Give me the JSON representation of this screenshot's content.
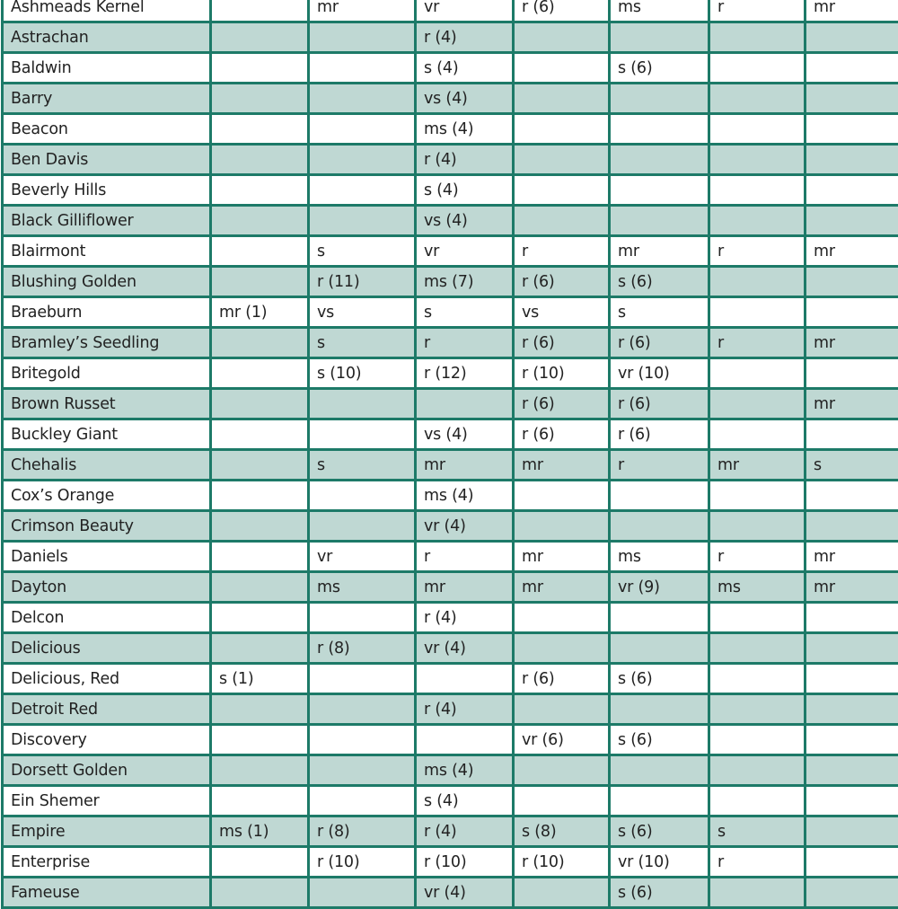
{
  "colors": {
    "border": "#1d7a68",
    "shade": "#bfd8d3"
  },
  "rows": [
    [
      "Ashmeads Kernel",
      "",
      "mr",
      "vr",
      "r (6)",
      "ms",
      "r",
      "mr"
    ],
    [
      "Astrachan",
      "",
      "",
      "r (4)",
      "",
      "",
      "",
      ""
    ],
    [
      "Baldwin",
      "",
      "",
      "s (4)",
      "",
      "s (6)",
      "",
      ""
    ],
    [
      "Barry",
      "",
      "",
      "vs (4)",
      "",
      "",
      "",
      ""
    ],
    [
      "Beacon",
      "",
      "",
      "ms (4)",
      "",
      "",
      "",
      ""
    ],
    [
      "Ben Davis",
      "",
      "",
      "r (4)",
      "",
      "",
      "",
      ""
    ],
    [
      "Beverly Hills",
      "",
      "",
      "s (4)",
      "",
      "",
      "",
      ""
    ],
    [
      "Black Gilliflower",
      "",
      "",
      "vs (4)",
      "",
      "",
      "",
      ""
    ],
    [
      "Blairmont",
      "",
      "s",
      "vr",
      "r",
      "mr",
      "r",
      "mr"
    ],
    [
      "Blushing Golden",
      "",
      "r (11)",
      "ms (7)",
      "r (6)",
      "s (6)",
      "",
      ""
    ],
    [
      "Braeburn",
      "mr (1)",
      "vs",
      "s",
      "vs",
      "s",
      "",
      ""
    ],
    [
      "Bramley’s Seedling",
      "",
      "s",
      "r",
      "r (6)",
      "r (6)",
      "r",
      "mr"
    ],
    [
      "Britegold",
      "",
      "s (10)",
      "r (12)",
      "r (10)",
      "vr (10)",
      "",
      ""
    ],
    [
      "Brown Russet",
      "",
      "",
      "",
      "r (6)",
      "r (6)",
      "",
      "mr"
    ],
    [
      "Buckley Giant",
      "",
      "",
      "vs (4)",
      "r (6)",
      "r (6)",
      "",
      ""
    ],
    [
      "Chehalis",
      "",
      "s",
      "mr",
      "mr",
      "r",
      "mr",
      "s"
    ],
    [
      "Cox’s Orange",
      "",
      "",
      "ms (4)",
      "",
      "",
      "",
      ""
    ],
    [
      "Crimson Beauty",
      "",
      "",
      "vr (4)",
      "",
      "",
      "",
      ""
    ],
    [
      "Daniels",
      "",
      "vr",
      "r",
      "mr",
      "ms",
      "r",
      "mr"
    ],
    [
      "Dayton",
      "",
      "ms",
      "mr",
      "mr",
      "vr (9)",
      "ms",
      "mr"
    ],
    [
      "Delcon",
      "",
      "",
      "r (4)",
      "",
      "",
      "",
      ""
    ],
    [
      "Delicious",
      "",
      "r (8)",
      "vr (4)",
      "",
      "",
      "",
      ""
    ],
    [
      "Delicious, Red",
      "s (1)",
      "",
      "",
      "r (6)",
      "s (6)",
      "",
      ""
    ],
    [
      "Detroit Red",
      "",
      "",
      "r (4)",
      "",
      "",
      "",
      ""
    ],
    [
      "Discovery",
      "",
      "",
      "",
      "vr (6)",
      "s (6)",
      "",
      ""
    ],
    [
      "Dorsett Golden",
      "",
      "",
      "ms (4)",
      "",
      "",
      "",
      ""
    ],
    [
      "Ein Shemer",
      "",
      "",
      "s (4)",
      "",
      "",
      "",
      ""
    ],
    [
      "Empire",
      "ms (1)",
      "r (8)",
      "r (4)",
      "s (8)",
      "s (6)",
      "s",
      ""
    ],
    [
      "Enterprise",
      "",
      "r (10)",
      "r (10)",
      "r (10)",
      "vr (10)",
      "r",
      ""
    ],
    [
      "Fameuse",
      "",
      "",
      "vr (4)",
      "",
      "s (6)",
      "",
      ""
    ]
  ]
}
